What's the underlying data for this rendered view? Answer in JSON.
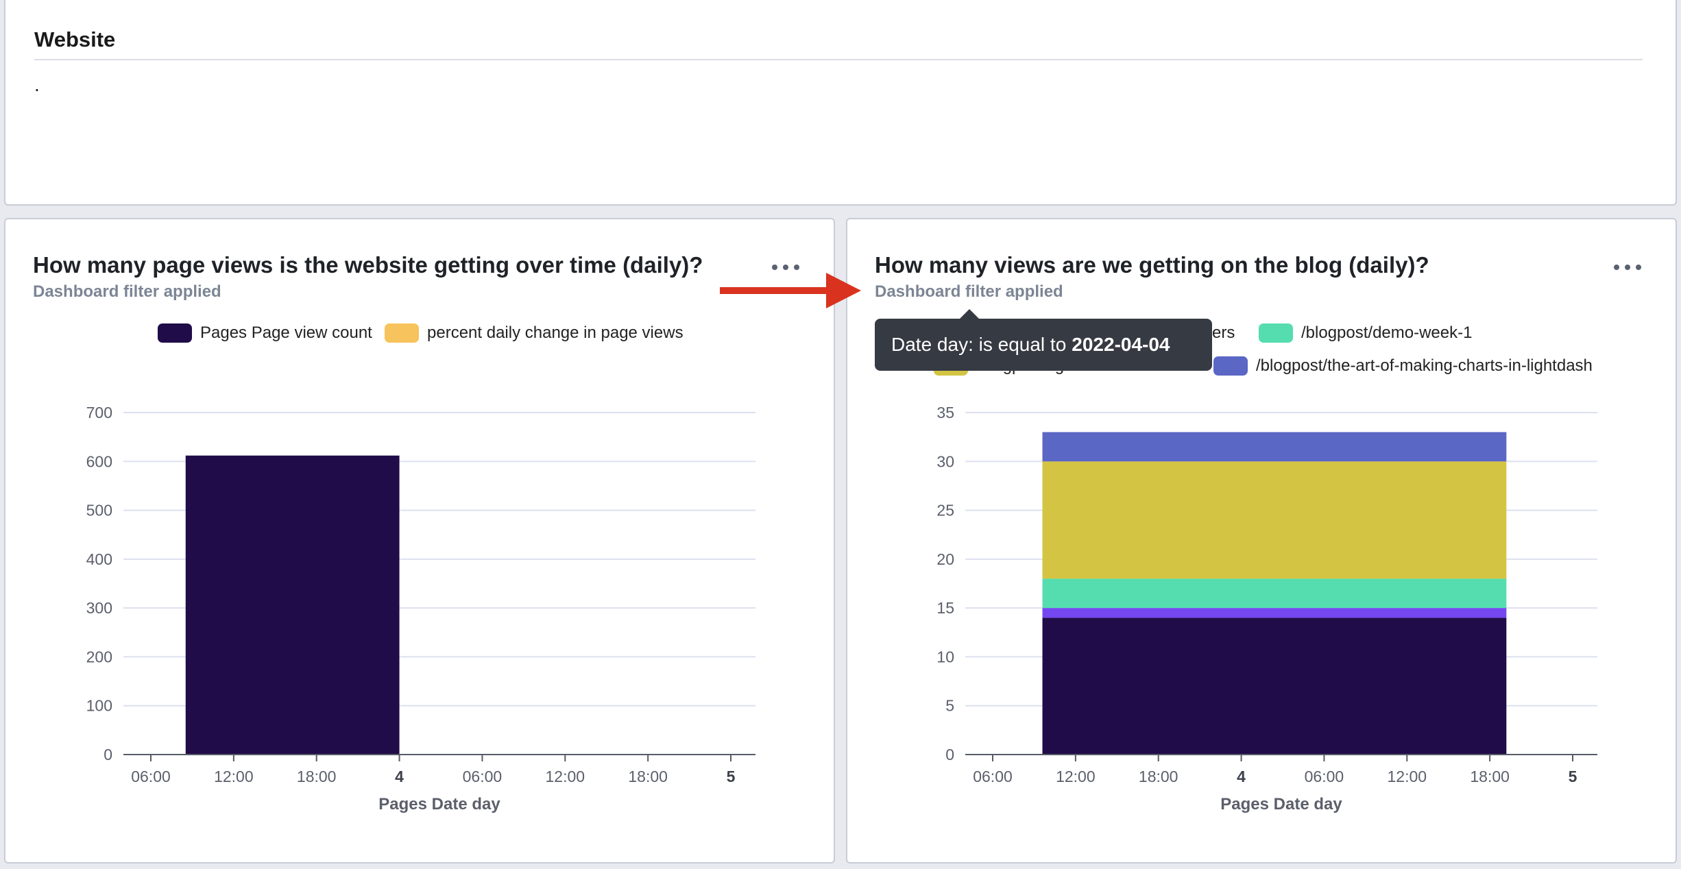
{
  "text_tile": {
    "title": "Website",
    "body": "."
  },
  "left_chart": {
    "title": "How many page views is the website getting over time (daily)?",
    "subtitle": "Dashboard filter applied",
    "legend": [
      "Pages Page view count",
      "percent daily change in page views"
    ]
  },
  "right_chart": {
    "title": "How many views are we getting on the blog (daily)?",
    "subtitle": "Dashboard filter applied",
    "legend_visible": [
      "lters",
      "/blogpost/demo-week-1",
      "/blogpost/lightdash-dbt-metrics",
      "/blogpost/the-art-of-making-charts-in-lightdash"
    ]
  },
  "tooltip": {
    "prefix": "Date day: is equal to",
    "value": "2022-04-04"
  },
  "colors": {
    "dark": "#200c48",
    "yellow": "#f7c35c",
    "olive": "#d4c444",
    "green": "#55ddb0",
    "purple": "#7447f0",
    "blue": "#5b67c4",
    "arrow": "#d9331f"
  },
  "icons": {
    "menu": "more-horizontal-icon",
    "arrow": "arrow-right-icon"
  },
  "chart_data": [
    {
      "type": "bar",
      "title": "How many page views is the website getting over time (daily)?",
      "xlabel": "Pages Date day",
      "ylabel": "",
      "ylim": [
        0,
        700
      ],
      "yticks": [
        0,
        100,
        200,
        300,
        400,
        500,
        600,
        700
      ],
      "xticks": [
        "06:00",
        "12:00",
        "18:00",
        "4",
        "06:00",
        "12:00",
        "18:00",
        "5"
      ],
      "categories": [
        "2022-04-04"
      ],
      "series": [
        {
          "name": "Pages Page view count",
          "values": [
            612
          ]
        },
        {
          "name": "percent daily change in page views",
          "values": [
            null
          ]
        }
      ],
      "legend": "top-center",
      "grid": true
    },
    {
      "type": "bar",
      "stacked": true,
      "title": "How many views are we getting on the blog (daily)?",
      "xlabel": "Pages Date day",
      "ylabel": "",
      "ylim": [
        0,
        35
      ],
      "yticks": [
        0,
        5,
        10,
        15,
        20,
        25,
        30,
        35
      ],
      "xticks": [
        "06:00",
        "12:00",
        "18:00",
        "4",
        "06:00",
        "12:00",
        "18:00",
        "5"
      ],
      "categories": [
        "2022-04-04"
      ],
      "series": [
        {
          "name": "",
          "values": [
            14
          ]
        },
        {
          "name": "",
          "values": [
            1
          ]
        },
        {
          "name": "/blogpost/demo-week-1",
          "values": [
            3
          ]
        },
        {
          "name": "/blogpost/lightdash-dbt-metrics",
          "values": [
            12
          ]
        },
        {
          "name": "/blogpost/the-art-of-making-charts-in-lightdash",
          "values": [
            3
          ]
        }
      ],
      "legend": "top-center",
      "grid": true
    }
  ]
}
